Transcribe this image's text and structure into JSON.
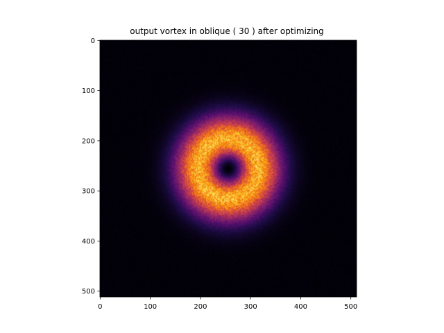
{
  "chart_data": {
    "type": "heatmap",
    "title": "output vortex in oblique  ( 30 ) after optimizing",
    "xlabel": "",
    "ylabel": "",
    "xlim": [
      -0.5,
      511.5
    ],
    "ylim": [
      511.5,
      -0.5
    ],
    "x_ticks": [
      0,
      100,
      200,
      300,
      400,
      500
    ],
    "y_ticks": [
      0,
      100,
      200,
      300,
      400,
      500
    ],
    "grid": false,
    "colormap": "inferno",
    "image_size": [
      512,
      512
    ],
    "ring": {
      "center": [
        256,
        256
      ],
      "peak_radius": 60,
      "core_dark_radius": 14,
      "outer_fade_radius": 170,
      "peak_color": "#f8a012",
      "background_color": "#000004"
    }
  }
}
